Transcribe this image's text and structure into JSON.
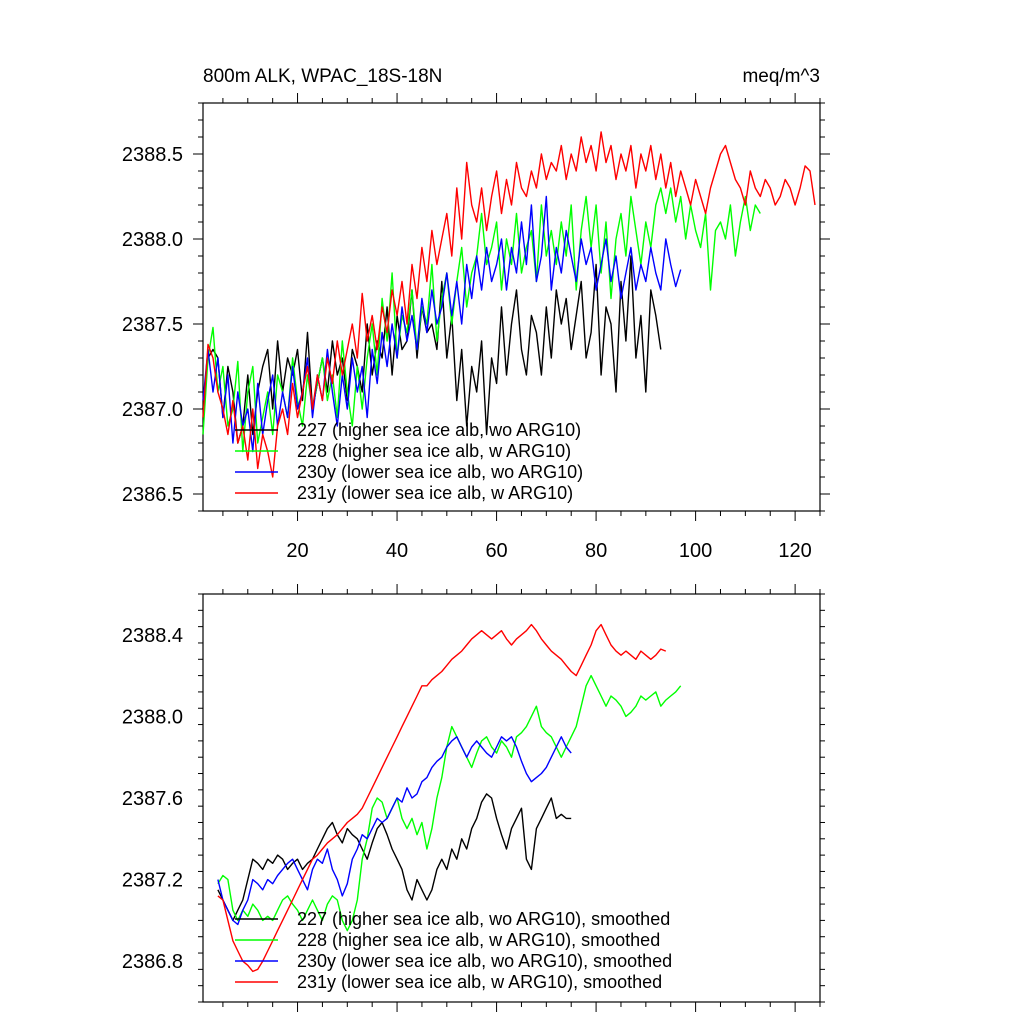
{
  "title_left": "800m ALK, WPAC_18S-18N",
  "title_right": "meq/m^3",
  "chart_data": [
    {
      "type": "line",
      "panel": "raw",
      "title": "800m ALK, WPAC_18S-18N",
      "units": "meq/m^3",
      "xlim": [
        1,
        125
      ],
      "ylim": [
        2386.4,
        2388.8
      ],
      "x_ticks": [
        20,
        40,
        60,
        80,
        100,
        120
      ],
      "y_ticks": [
        2386.5,
        2387.0,
        2387.5,
        2388.0,
        2388.5
      ],
      "y_tick_labels": [
        "2386.5",
        "2387.0",
        "2387.5",
        "2388.0",
        "2388.5"
      ],
      "x_tick_labels": [
        "20",
        "40",
        "60",
        "80",
        "100",
        "120"
      ],
      "series": [
        {
          "name": "227",
          "label": "227 (higher sea ice alb, wo ARG10)",
          "color": "#000000",
          "values": [
            2387.0,
            2387.3,
            2387.35,
            2387.3,
            2386.95,
            2387.25,
            2387.1,
            2386.8,
            2386.9,
            2387.2,
            2386.85,
            2387.1,
            2387.25,
            2387.35,
            2387.0,
            2387.4,
            2387.1,
            2387.3,
            2387.2,
            2387.35,
            2387.05,
            2387.45,
            2387.0,
            2387.15,
            2387.3,
            2387.1,
            2387.4,
            2387.2,
            2387.3,
            2387.05,
            2387.35,
            2387.25,
            2387.1,
            2387.5,
            2387.2,
            2387.4,
            2387.3,
            2387.6,
            2387.2,
            2387.55,
            2387.35,
            2387.4,
            2387.7,
            2387.3,
            2387.6,
            2387.45,
            2387.5,
            2387.35,
            2387.75,
            2387.3,
            2387.55,
            2387.05,
            2387.35,
            2386.9,
            2387.25,
            2387.1,
            2387.4,
            2386.85,
            2387.3,
            2387.15,
            2387.6,
            2387.2,
            2387.5,
            2387.7,
            2387.35,
            2387.2,
            2387.55,
            2387.45,
            2387.2,
            2387.6,
            2387.3,
            2387.7,
            2387.5,
            2387.65,
            2387.35,
            2387.55,
            2387.75,
            2387.3,
            2387.45,
            2387.85,
            2387.2,
            2387.6,
            2387.5,
            2387.1,
            2387.75,
            2387.4,
            2387.9,
            2387.3,
            2387.55,
            2387.1,
            2387.7,
            2387.55,
            2387.35
          ]
        },
        {
          "name": "228",
          "label": "228 (higher sea ice alb, w ARG10)",
          "color": "#00ff00",
          "values": [
            2386.85,
            2387.3,
            2387.48,
            2387.1,
            2387.25,
            2386.9,
            2387.0,
            2387.28,
            2386.75,
            2387.1,
            2387.25,
            2386.8,
            2386.95,
            2387.1,
            2386.85,
            2387.2,
            2387.1,
            2386.95,
            2387.3,
            2387.05,
            2386.9,
            2387.2,
            2387.0,
            2387.15,
            2387.3,
            2387.05,
            2387.2,
            2386.95,
            2387.4,
            2387.1,
            2386.9,
            2387.25,
            2387.0,
            2387.3,
            2387.5,
            2387.2,
            2387.65,
            2387.4,
            2387.8,
            2387.3,
            2387.55,
            2387.45,
            2387.7,
            2387.35,
            2387.6,
            2387.5,
            2387.85,
            2387.4,
            2387.65,
            2387.8,
            2387.5,
            2387.75,
            2387.95,
            2387.6,
            2387.8,
            2387.9,
            2388.15,
            2387.85,
            2387.95,
            2388.1,
            2387.7,
            2388.0,
            2387.85,
            2388.15,
            2387.8,
            2387.95,
            2388.05,
            2387.75,
            2388.2,
            2387.9,
            2388.05,
            2387.85,
            2388.1,
            2387.9,
            2388.2,
            2387.7,
            2388.05,
            2388.25,
            2387.95,
            2388.2,
            2387.8,
            2388.1,
            2387.65,
            2388.0,
            2388.15,
            2387.9,
            2388.25,
            2388.05,
            2387.85,
            2388.1,
            2387.95,
            2388.2,
            2388.3,
            2388.15,
            2388.3,
            2388.1,
            2388.25,
            2388.0,
            2388.2,
            2388.05,
            2387.95,
            2388.15,
            2387.7,
            2388.05,
            2388.1,
            2388.0,
            2388.2,
            2387.9,
            2388.1,
            2388.25,
            2388.05,
            2388.2,
            2388.15
          ]
        },
        {
          "name": "230y",
          "label": "230y (lower sea ice alb, wo ARG10)",
          "color": "#0000ff",
          "values": [
            2387.05,
            2387.35,
            2387.1,
            2387.3,
            2386.95,
            2387.2,
            2386.8,
            2387.1,
            2386.9,
            2387.0,
            2386.75,
            2387.15,
            2386.85,
            2387.05,
            2387.2,
            2386.9,
            2387.1,
            2386.95,
            2387.25,
            2387.0,
            2387.1,
            2387.3,
            2386.95,
            2387.2,
            2387.05,
            2387.35,
            2387.1,
            2386.9,
            2387.2,
            2387.0,
            2387.3,
            2387.1,
            2387.25,
            2386.95,
            2387.35,
            2387.15,
            2387.45,
            2387.25,
            2387.5,
            2387.3,
            2387.6,
            2387.4,
            2387.55,
            2387.35,
            2387.65,
            2387.45,
            2387.7,
            2387.5,
            2387.6,
            2387.8,
            2387.55,
            2387.75,
            2387.5,
            2387.85,
            2387.65,
            2387.9,
            2387.7,
            2387.95,
            2387.75,
            2387.85,
            2388.0,
            2387.7,
            2387.95,
            2387.8,
            2388.1,
            2387.85,
            2388.2,
            2387.75,
            2387.9,
            2388.25,
            2387.7,
            2387.95,
            2387.8,
            2388.05,
            2387.9,
            2387.75,
            2388.0,
            2387.85,
            2387.95,
            2387.7,
            2387.85,
            2388.0,
            2387.75,
            2387.9,
            2387.65,
            2387.8,
            2387.95,
            2387.7,
            2387.85,
            2387.75,
            2387.95,
            2387.8,
            2387.7,
            2388.0,
            2387.85,
            2387.72,
            2387.82
          ]
        },
        {
          "name": "231y",
          "label": "231y (lower sea ice alb, w ARG10)",
          "color": "#ff0000",
          "values": [
            2386.95,
            2387.38,
            2387.3,
            2387.1,
            2387.0,
            2386.85,
            2387.05,
            2386.8,
            2386.9,
            2386.7,
            2387.0,
            2386.65,
            2386.85,
            2386.75,
            2386.6,
            2386.9,
            2387.0,
            2386.85,
            2387.15,
            2386.95,
            2387.1,
            2387.25,
            2387.0,
            2387.2,
            2387.05,
            2387.3,
            2387.15,
            2387.4,
            2387.2,
            2387.35,
            2387.5,
            2387.3,
            2387.68,
            2387.4,
            2387.55,
            2387.35,
            2387.6,
            2387.45,
            2387.7,
            2387.55,
            2387.75,
            2387.5,
            2387.85,
            2387.65,
            2387.95,
            2387.75,
            2388.05,
            2387.85,
            2388.0,
            2388.15,
            2387.9,
            2388.3,
            2388.0,
            2388.45,
            2388.2,
            2388.1,
            2388.3,
            2388.05,
            2388.25,
            2388.4,
            2388.15,
            2388.35,
            2388.2,
            2388.45,
            2388.3,
            2388.25,
            2388.4,
            2388.3,
            2388.5,
            2388.35,
            2388.45,
            2388.4,
            2388.55,
            2388.35,
            2388.5,
            2388.4,
            2388.6,
            2388.45,
            2388.55,
            2388.4,
            2388.63,
            2388.45,
            2388.55,
            2388.35,
            2388.5,
            2388.4,
            2388.55,
            2388.3,
            2388.5,
            2388.4,
            2388.55,
            2388.35,
            2388.5,
            2388.3,
            2388.45,
            2388.25,
            2388.4,
            2388.3,
            2388.2,
            2388.35,
            2388.25,
            2388.15,
            2388.3,
            2388.4,
            2388.5,
            2388.55,
            2388.45,
            2388.35,
            2388.3,
            2388.2,
            2388.4,
            2388.3,
            2388.25,
            2388.35,
            2388.3,
            2388.2,
            2388.25,
            2388.35,
            2388.3,
            2388.2,
            2388.3,
            2388.43,
            2388.4,
            2388.2
          ]
        }
      ],
      "legend_position": "bottom-left"
    },
    {
      "type": "line",
      "panel": "smoothed",
      "xlim": [
        1,
        125
      ],
      "ylim": [
        2386.6,
        2388.6
      ],
      "y_ticks": [
        2386.8,
        2387.2,
        2387.6,
        2388.0,
        2388.4
      ],
      "y_tick_labels": [
        "2386.8",
        "2387.2",
        "2387.6",
        "2388.0",
        "2388.4"
      ],
      "series": [
        {
          "name": "227",
          "label": "227 (higher sea ice alb, wo ARG10), smoothed",
          "color": "#000000",
          "x_start": 4,
          "values": [
            2387.15,
            2387.1,
            2387.05,
            2387.0,
            2387.05,
            2387.1,
            2387.2,
            2387.3,
            2387.28,
            2387.25,
            2387.3,
            2387.28,
            2387.32,
            2387.3,
            2387.25,
            2387.28,
            2387.3,
            2387.25,
            2387.28,
            2387.3,
            2387.35,
            2387.4,
            2387.45,
            2387.48,
            2387.42,
            2387.38,
            2387.45,
            2387.42,
            2387.4,
            2387.35,
            2387.3,
            2387.38,
            2387.45,
            2387.48,
            2387.42,
            2387.35,
            2387.3,
            2387.25,
            2387.15,
            2387.1,
            2387.2,
            2387.15,
            2387.1,
            2387.15,
            2387.25,
            2387.3,
            2387.25,
            2387.35,
            2387.3,
            2387.4,
            2387.35,
            2387.45,
            2387.5,
            2387.58,
            2387.62,
            2387.6,
            2387.5,
            2387.42,
            2387.35,
            2387.45,
            2387.5,
            2387.55,
            2387.3,
            2387.25,
            2387.45,
            2387.5,
            2387.55,
            2387.6,
            2387.5,
            2387.52,
            2387.5,
            2387.5
          ]
        },
        {
          "name": "228",
          "label": "228 (higher sea ice alb, w ARG10), smoothed",
          "color": "#00ff00",
          "x_start": 4,
          "values": [
            2387.18,
            2387.22,
            2387.2,
            2387.05,
            2387.0,
            2387.05,
            2387.02,
            2387.08,
            2387.05,
            2387.0,
            2387.02,
            2387.0,
            2387.05,
            2387.1,
            2387.12,
            2387.08,
            2387.05,
            2387.0,
            2387.05,
            2387.1,
            2387.05,
            2387.0,
            2387.08,
            2387.12,
            2387.1,
            2387.0,
            2386.95,
            2387.0,
            2387.1,
            2387.3,
            2387.4,
            2387.55,
            2387.6,
            2387.58,
            2387.5,
            2387.55,
            2387.6,
            2387.5,
            2387.45,
            2387.5,
            2387.42,
            2387.48,
            2387.35,
            2387.45,
            2387.6,
            2387.7,
            2387.85,
            2387.95,
            2387.9,
            2387.85,
            2387.8,
            2387.75,
            2387.82,
            2387.88,
            2387.9,
            2387.85,
            2387.82,
            2387.88,
            2387.85,
            2387.8,
            2387.9,
            2387.92,
            2387.95,
            2388.0,
            2388.05,
            2387.95,
            2387.92,
            2387.9,
            2387.85,
            2387.8,
            2387.85,
            2387.9,
            2387.95,
            2388.05,
            2388.15,
            2388.2,
            2388.15,
            2388.1,
            2388.05,
            2388.1,
            2388.08,
            2388.05,
            2388.0,
            2388.02,
            2388.05,
            2388.1,
            2388.08,
            2388.1,
            2388.12,
            2388.05,
            2388.08,
            2388.1,
            2388.12,
            2388.15
          ]
        },
        {
          "name": "230y",
          "label": "230y (lower sea ice alb, wo ARG10), smoothed",
          "color": "#0000ff",
          "x_start": 4,
          "values": [
            2387.2,
            2387.1,
            2387.05,
            2387.0,
            2386.98,
            2387.05,
            2387.1,
            2387.2,
            2387.18,
            2387.15,
            2387.2,
            2387.18,
            2387.22,
            2387.25,
            2387.28,
            2387.3,
            2387.25,
            2387.2,
            2387.15,
            2387.25,
            2387.3,
            2387.28,
            2387.35,
            2387.25,
            2387.2,
            2387.12,
            2387.18,
            2387.3,
            2387.35,
            2387.42,
            2387.4,
            2387.45,
            2387.5,
            2387.48,
            2387.5,
            2387.55,
            2387.6,
            2387.58,
            2387.65,
            2387.6,
            2387.62,
            2387.68,
            2387.7,
            2387.75,
            2387.78,
            2387.8,
            2387.85,
            2387.88,
            2387.9,
            2387.85,
            2387.8,
            2387.85,
            2387.88,
            2387.85,
            2387.82,
            2387.8,
            2387.85,
            2387.9,
            2387.88,
            2387.9,
            2387.85,
            2387.78,
            2387.72,
            2387.68,
            2387.7,
            2387.72,
            2387.75,
            2387.8,
            2387.85,
            2387.9,
            2387.85,
            2387.82
          ]
        },
        {
          "name": "231y",
          "label": "231y (lower sea ice alb, w ARG10), smoothed",
          "color": "#ff0000",
          "x_start": 4,
          "values": [
            2387.12,
            2387.1,
            2387.0,
            2386.9,
            2386.85,
            2386.8,
            2386.78,
            2386.75,
            2386.76,
            2386.8,
            2386.85,
            2386.9,
            2386.95,
            2387.0,
            2387.05,
            2387.1,
            2387.15,
            2387.2,
            2387.25,
            2387.3,
            2387.32,
            2387.35,
            2387.38,
            2387.4,
            2387.42,
            2387.45,
            2387.48,
            2387.5,
            2387.52,
            2387.55,
            2387.6,
            2387.65,
            2387.7,
            2387.75,
            2387.8,
            2387.85,
            2387.9,
            2387.95,
            2388.0,
            2388.05,
            2388.1,
            2388.15,
            2388.15,
            2388.18,
            2388.2,
            2388.22,
            2388.25,
            2388.28,
            2388.3,
            2388.32,
            2388.35,
            2388.38,
            2388.4,
            2388.42,
            2388.4,
            2388.38,
            2388.4,
            2388.42,
            2388.38,
            2388.35,
            2388.38,
            2388.4,
            2388.42,
            2388.45,
            2388.42,
            2388.38,
            2388.35,
            2388.32,
            2388.3,
            2388.28,
            2388.25,
            2388.22,
            2388.2,
            2388.25,
            2388.3,
            2388.35,
            2388.42,
            2388.45,
            2388.4,
            2388.35,
            2388.32,
            2388.3,
            2388.32,
            2388.3,
            2388.28,
            2388.32,
            2388.3,
            2388.28,
            2388.3,
            2388.33,
            2388.32
          ]
        }
      ],
      "legend_position": "bottom-left"
    }
  ]
}
